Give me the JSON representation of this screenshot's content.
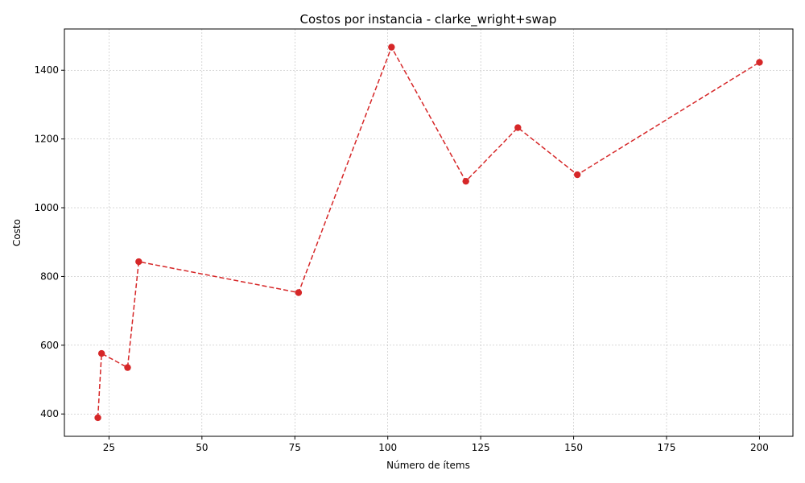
{
  "chart_data": {
    "type": "line",
    "title": "Costos por instancia - clarke_wright+swap",
    "xlabel": "Número de ítems",
    "ylabel": "Costo",
    "xlim": [
      13,
      209
    ],
    "ylim": [
      335,
      1520
    ],
    "x_ticks": [
      25,
      50,
      75,
      100,
      125,
      150,
      175,
      200
    ],
    "y_ticks": [
      400,
      600,
      800,
      1000,
      1200,
      1400
    ],
    "grid": true,
    "line_style": "dashed",
    "marker": "circle",
    "series": [
      {
        "color": "#d62728",
        "x": [
          22,
          23,
          30,
          33,
          76,
          101,
          121,
          135,
          151,
          200
        ],
        "y": [
          389,
          576,
          535,
          843,
          753,
          1467,
          1077,
          1233,
          1096,
          1423
        ]
      }
    ]
  }
}
